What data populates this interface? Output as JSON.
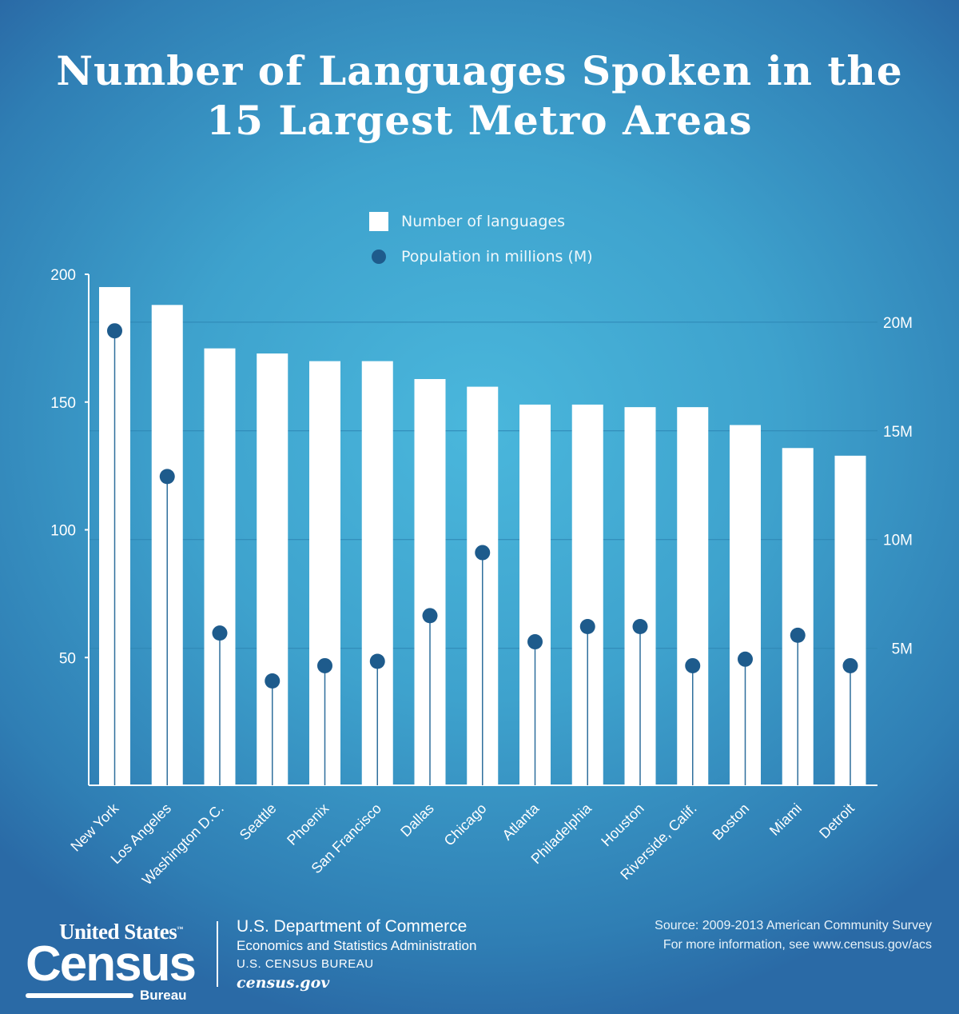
{
  "title": {
    "line1": "Number of Languages Spoken in the",
    "line2": "15 Largest Metro Areas"
  },
  "legend": {
    "bars_label": "Number of languages",
    "dots_label": "Population in millions (M)"
  },
  "colors": {
    "bar": "#ffffff",
    "dot": "#1e5b8c",
    "stem": "#2f6f9c",
    "grid": "#2e86b4",
    "axis": "#ffffff"
  },
  "chart_data": {
    "type": "bar",
    "title": "Number of Languages Spoken in the 15 Largest Metro Areas",
    "categories": [
      "New York",
      "Los Angeles",
      "Washington D.C.",
      "Seattle",
      "Phoenix",
      "San Francisco",
      "Dallas",
      "Chicago",
      "Atlanta",
      "Philadelphia",
      "Houston",
      "Riverside, Calif.",
      "Boston",
      "Miami",
      "Detroit"
    ],
    "series": [
      {
        "name": "Number of languages",
        "axis": "left",
        "values": [
          195,
          188,
          171,
          169,
          166,
          166,
          159,
          156,
          149,
          149,
          148,
          148,
          141,
          132,
          129
        ]
      },
      {
        "name": "Population in millions (M)",
        "axis": "right",
        "values": [
          19.6,
          12.9,
          5.7,
          3.5,
          4.2,
          4.4,
          6.5,
          9.4,
          5.3,
          6.0,
          6.0,
          4.2,
          4.5,
          5.6,
          4.2
        ]
      }
    ],
    "left_axis": {
      "ylim": [
        0,
        200
      ],
      "ticks": [
        50,
        100,
        150,
        200
      ],
      "tick_labels": [
        "50",
        "100",
        "150",
        "200"
      ]
    },
    "right_axis": {
      "ylim": [
        -1.3,
        22.2
      ],
      "ticks": [
        5,
        10,
        15,
        20
      ],
      "tick_labels": [
        "5M",
        "10M",
        "15M",
        "20M"
      ]
    }
  },
  "footer": {
    "logo_top": "United States",
    "logo_tm": "™",
    "logo_main": "Census",
    "logo_bottom": "Bureau",
    "dept_line1": "U.S. Department of Commerce",
    "dept_line2": "Economics and Statistics Administration",
    "dept_line3": "U.S. CENSUS BUREAU",
    "dept_line4": "census.gov",
    "source_line1": "Source: 2009-2013 American Community Survey",
    "source_line2": "For more information, see www.census.gov/acs"
  }
}
